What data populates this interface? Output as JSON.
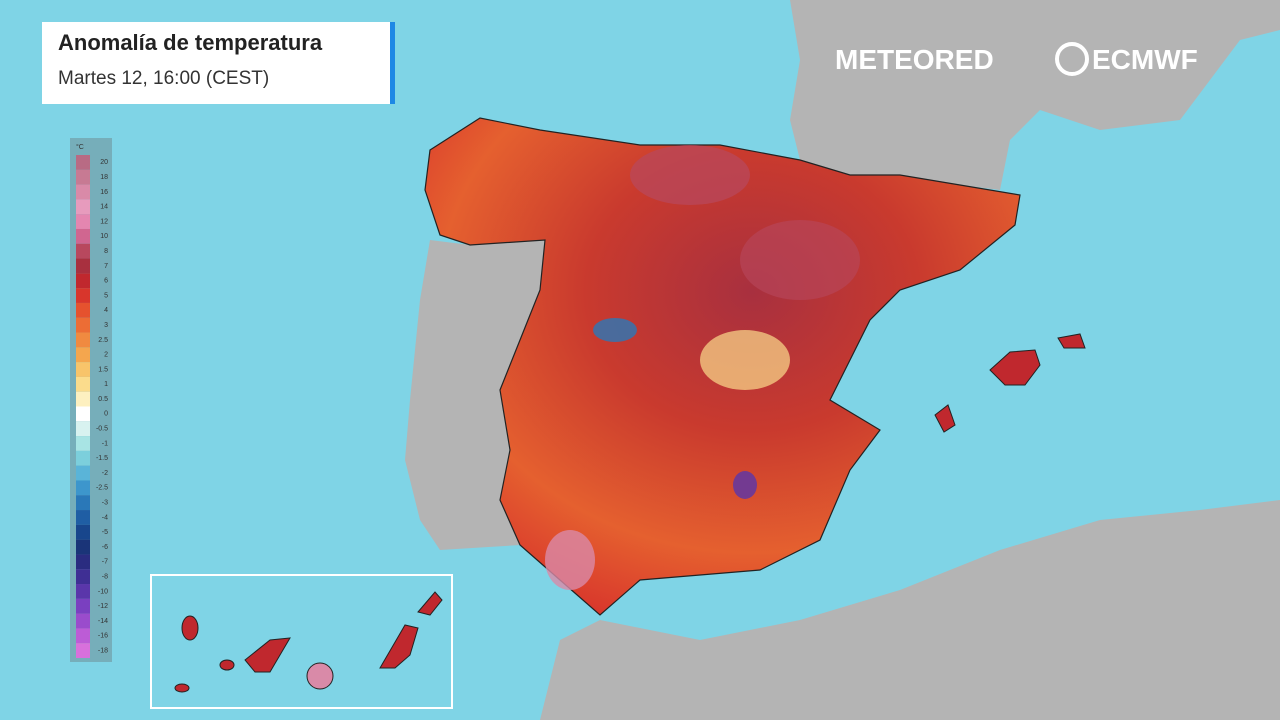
{
  "header": {
    "title": "Anomalía de temperatura",
    "subtitle": "Martes 12, 16:00 (CEST)"
  },
  "brands": [
    "METEORED",
    "ECMWF"
  ],
  "legend": {
    "unit": "°C",
    "items": [
      {
        "label": "20",
        "color": "#b86b84"
      },
      {
        "label": "18",
        "color": "#c77a93"
      },
      {
        "label": "16",
        "color": "#d98aa8"
      },
      {
        "label": "14",
        "color": "#e79bbd"
      },
      {
        "label": "12",
        "color": "#e486b0"
      },
      {
        "label": "10",
        "color": "#d06690"
      },
      {
        "label": "8",
        "color": "#b8485e"
      },
      {
        "label": "7",
        "color": "#a8303f"
      },
      {
        "label": "6",
        "color": "#c0282e"
      },
      {
        "label": "5",
        "color": "#d8362c"
      },
      {
        "label": "4",
        "color": "#e5522e"
      },
      {
        "label": "3",
        "color": "#ec6d35"
      },
      {
        "label": "2.5",
        "color": "#f08a40"
      },
      {
        "label": "2",
        "color": "#f4a64e"
      },
      {
        "label": "1.5",
        "color": "#f8c46a"
      },
      {
        "label": "1",
        "color": "#fbdc8c"
      },
      {
        "label": "0.5",
        "color": "#fdf0c0"
      },
      {
        "label": "0",
        "color": "#ffffff"
      },
      {
        "label": "-0.5",
        "color": "#d8f2f0"
      },
      {
        "label": "-1",
        "color": "#a8e4e4"
      },
      {
        "label": "-1.5",
        "color": "#7ccfdc"
      },
      {
        "label": "-2",
        "color": "#5ab4d8"
      },
      {
        "label": "-2.5",
        "color": "#3d96cc"
      },
      {
        "label": "-3",
        "color": "#2a78b8"
      },
      {
        "label": "-4",
        "color": "#1f5ea4"
      },
      {
        "label": "-5",
        "color": "#18468c"
      },
      {
        "label": "-6",
        "color": "#1a3478"
      },
      {
        "label": "-7",
        "color": "#2a2c80"
      },
      {
        "label": "-8",
        "color": "#3f2f94"
      },
      {
        "label": "-10",
        "color": "#5a36aa"
      },
      {
        "label": "-12",
        "color": "#7a40c0"
      },
      {
        "label": "-14",
        "color": "#9a4ccc"
      },
      {
        "label": "-16",
        "color": "#bc5cd6"
      },
      {
        "label": "-18",
        "color": "#d870dc"
      }
    ]
  }
}
